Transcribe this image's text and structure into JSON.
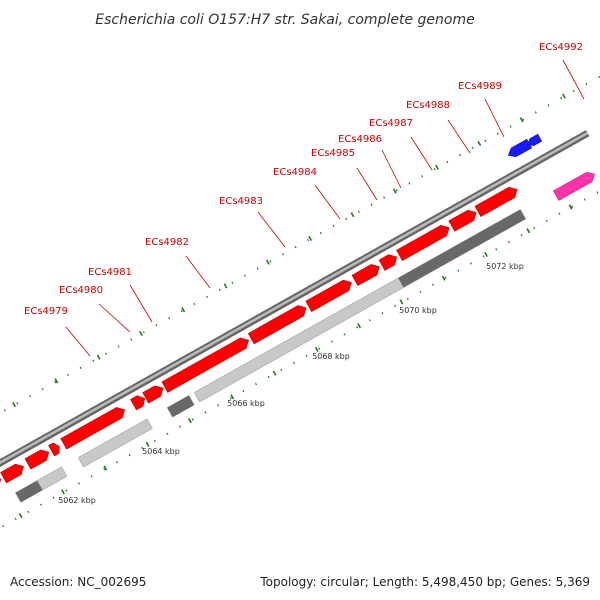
{
  "title": "Escherichia coli O157:H7 str. Sakai, complete genome",
  "accession": "Accession: NC_002695",
  "summary": "Topology: circular; Length: 5,498,450 bp; Genes: 5,369",
  "colors": {
    "gene_forward": "#ff0000",
    "gene_reverse_blue": "#1a1aff",
    "gene_magenta": "#ff33aa",
    "label_text": "#cc0000",
    "backbone_dark": "#666666",
    "backbone_light": "#bbbbbb",
    "block_light": "#c8c8c8",
    "block_dark": "#686868",
    "tick": "#1a7a1a"
  },
  "kbp_labels": [
    "5062 kbp",
    "5064 kbp",
    "5066 kbp",
    "5068 kbp",
    "5070 kbp",
    "5072 kbp"
  ],
  "gene_labels": [
    "ECs4979",
    "ECs4980",
    "ECs4981",
    "ECs4982",
    "ECs4983",
    "ECs4984",
    "ECs4985",
    "ECs4986",
    "ECs4987",
    "ECs4988",
    "ECs4989",
    "ECs4992"
  ]
}
